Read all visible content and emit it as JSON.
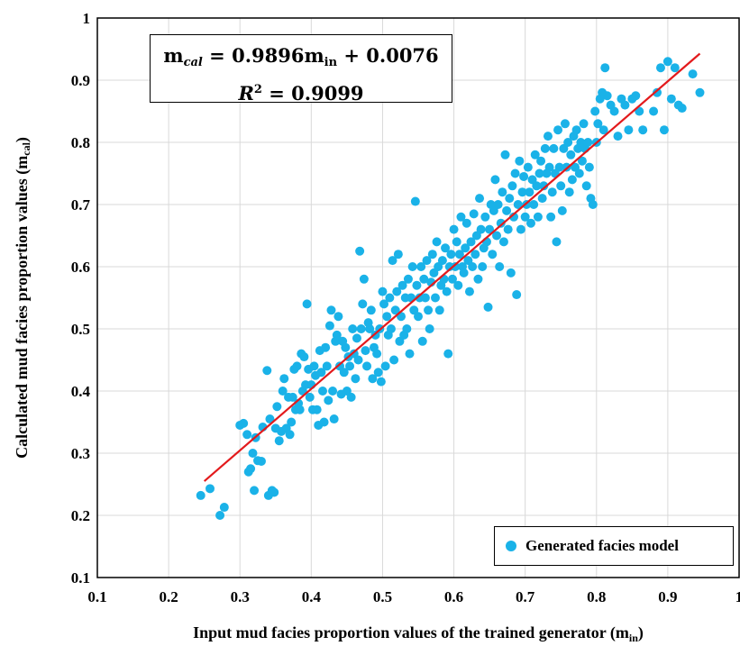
{
  "colors": {
    "points": "#1ab2e8",
    "fit_line": "#e31a1c",
    "axis": "#000000",
    "grid": "#d9d9d9"
  },
  "equation": {
    "line1_lhs_symbol": "m",
    "line1_lhs_sub": "cal",
    "line1_rhs": "= 0.9896m",
    "line1_rhs_sub": "in",
    "line1_tail": "+ 0.0076",
    "line2_symbol": "R",
    "line2_sup": "2",
    "line2_rhs": "= 0.9099"
  },
  "legend": {
    "label": "Generated facies model"
  },
  "chart_data": {
    "type": "scatter",
    "title": "",
    "xlabel": "Input mud facies proportion values of the trained generator (m",
    "xlabel_sub": "in",
    "xlabel_close": ")",
    "ylabel": "Calculated mud facies proportion values (m",
    "ylabel_sub": "cal",
    "ylabel_close": ")",
    "xlim": [
      0.1,
      1.0
    ],
    "ylim": [
      0.1,
      1.0
    ],
    "xticks": [
      "0.1",
      "0.2",
      "0.3",
      "0.4",
      "0.5",
      "0.6",
      "0.7",
      "0.8",
      "0.9",
      "1"
    ],
    "yticks": [
      "0.1",
      "0.2",
      "0.3",
      "0.4",
      "0.5",
      "0.6",
      "0.7",
      "0.8",
      "0.9",
      "1"
    ],
    "grid": true,
    "legend_position": "bottom-right",
    "fit_line": {
      "slope": 0.9896,
      "intercept": 0.0076,
      "x_range": [
        0.25,
        0.945
      ]
    },
    "series": [
      {
        "name": "Generated facies model",
        "points": [
          [
            0.245,
            0.232
          ],
          [
            0.258,
            0.243
          ],
          [
            0.272,
            0.2
          ],
          [
            0.278,
            0.213
          ],
          [
            0.3,
            0.345
          ],
          [
            0.305,
            0.348
          ],
          [
            0.31,
            0.33
          ],
          [
            0.312,
            0.27
          ],
          [
            0.315,
            0.275
          ],
          [
            0.318,
            0.3
          ],
          [
            0.32,
            0.24
          ],
          [
            0.322,
            0.325
          ],
          [
            0.325,
            0.288
          ],
          [
            0.33,
            0.287
          ],
          [
            0.332,
            0.342
          ],
          [
            0.338,
            0.433
          ],
          [
            0.34,
            0.232
          ],
          [
            0.342,
            0.355
          ],
          [
            0.345,
            0.24
          ],
          [
            0.348,
            0.237
          ],
          [
            0.35,
            0.34
          ],
          [
            0.352,
            0.375
          ],
          [
            0.355,
            0.32
          ],
          [
            0.358,
            0.335
          ],
          [
            0.36,
            0.4
          ],
          [
            0.362,
            0.42
          ],
          [
            0.365,
            0.34
          ],
          [
            0.368,
            0.39
          ],
          [
            0.37,
            0.33
          ],
          [
            0.372,
            0.35
          ],
          [
            0.374,
            0.39
          ],
          [
            0.376,
            0.435
          ],
          [
            0.378,
            0.37
          ],
          [
            0.38,
            0.44
          ],
          [
            0.382,
            0.38
          ],
          [
            0.384,
            0.37
          ],
          [
            0.386,
            0.46
          ],
          [
            0.388,
            0.4
          ],
          [
            0.39,
            0.455
          ],
          [
            0.392,
            0.41
          ],
          [
            0.394,
            0.54
          ],
          [
            0.396,
            0.435
          ],
          [
            0.398,
            0.39
          ],
          [
            0.4,
            0.41
          ],
          [
            0.402,
            0.37
          ],
          [
            0.404,
            0.44
          ],
          [
            0.406,
            0.425
          ],
          [
            0.408,
            0.37
          ],
          [
            0.41,
            0.345
          ],
          [
            0.412,
            0.465
          ],
          [
            0.414,
            0.43
          ],
          [
            0.416,
            0.4
          ],
          [
            0.418,
            0.35
          ],
          [
            0.42,
            0.47
          ],
          [
            0.422,
            0.44
          ],
          [
            0.424,
            0.385
          ],
          [
            0.426,
            0.505
          ],
          [
            0.428,
            0.53
          ],
          [
            0.43,
            0.4
          ],
          [
            0.432,
            0.355
          ],
          [
            0.434,
            0.48
          ],
          [
            0.436,
            0.49
          ],
          [
            0.438,
            0.52
          ],
          [
            0.44,
            0.44
          ],
          [
            0.442,
            0.395
          ],
          [
            0.444,
            0.48
          ],
          [
            0.446,
            0.43
          ],
          [
            0.448,
            0.47
          ],
          [
            0.45,
            0.4
          ],
          [
            0.452,
            0.455
          ],
          [
            0.454,
            0.44
          ],
          [
            0.456,
            0.39
          ],
          [
            0.458,
            0.5
          ],
          [
            0.46,
            0.46
          ],
          [
            0.462,
            0.42
          ],
          [
            0.464,
            0.485
          ],
          [
            0.466,
            0.45
          ],
          [
            0.468,
            0.625
          ],
          [
            0.47,
            0.5
          ],
          [
            0.472,
            0.54
          ],
          [
            0.474,
            0.58
          ],
          [
            0.476,
            0.465
          ],
          [
            0.478,
            0.44
          ],
          [
            0.48,
            0.51
          ],
          [
            0.482,
            0.5
          ],
          [
            0.484,
            0.53
          ],
          [
            0.486,
            0.42
          ],
          [
            0.488,
            0.47
          ],
          [
            0.49,
            0.49
          ],
          [
            0.492,
            0.46
          ],
          [
            0.494,
            0.43
          ],
          [
            0.496,
            0.5
          ],
          [
            0.498,
            0.415
          ],
          [
            0.5,
            0.56
          ],
          [
            0.502,
            0.54
          ],
          [
            0.504,
            0.44
          ],
          [
            0.506,
            0.52
          ],
          [
            0.508,
            0.49
          ],
          [
            0.51,
            0.55
          ],
          [
            0.512,
            0.5
          ],
          [
            0.514,
            0.61
          ],
          [
            0.516,
            0.45
          ],
          [
            0.518,
            0.53
          ],
          [
            0.52,
            0.56
          ],
          [
            0.522,
            0.62
          ],
          [
            0.524,
            0.48
          ],
          [
            0.526,
            0.52
          ],
          [
            0.528,
            0.57
          ],
          [
            0.53,
            0.49
          ],
          [
            0.532,
            0.55
          ],
          [
            0.534,
            0.5
          ],
          [
            0.536,
            0.58
          ],
          [
            0.538,
            0.46
          ],
          [
            0.54,
            0.55
          ],
          [
            0.542,
            0.6
          ],
          [
            0.544,
            0.53
          ],
          [
            0.546,
            0.705
          ],
          [
            0.548,
            0.57
          ],
          [
            0.55,
            0.52
          ],
          [
            0.552,
            0.55
          ],
          [
            0.554,
            0.6
          ],
          [
            0.556,
            0.48
          ],
          [
            0.558,
            0.58
          ],
          [
            0.56,
            0.55
          ],
          [
            0.562,
            0.61
          ],
          [
            0.564,
            0.53
          ],
          [
            0.566,
            0.5
          ],
          [
            0.568,
            0.575
          ],
          [
            0.57,
            0.62
          ],
          [
            0.572,
            0.59
          ],
          [
            0.574,
            0.55
          ],
          [
            0.576,
            0.64
          ],
          [
            0.578,
            0.6
          ],
          [
            0.58,
            0.53
          ],
          [
            0.582,
            0.57
          ],
          [
            0.584,
            0.61
          ],
          [
            0.586,
            0.58
          ],
          [
            0.588,
            0.63
          ],
          [
            0.59,
            0.56
          ],
          [
            0.592,
            0.46
          ],
          [
            0.594,
            0.6
          ],
          [
            0.596,
            0.62
          ],
          [
            0.598,
            0.58
          ],
          [
            0.6,
            0.66
          ],
          [
            0.602,
            0.6
          ],
          [
            0.604,
            0.64
          ],
          [
            0.606,
            0.57
          ],
          [
            0.608,
            0.62
          ],
          [
            0.61,
            0.68
          ],
          [
            0.612,
            0.6
          ],
          [
            0.614,
            0.59
          ],
          [
            0.616,
            0.63
          ],
          [
            0.618,
            0.67
          ],
          [
            0.62,
            0.61
          ],
          [
            0.622,
            0.56
          ],
          [
            0.624,
            0.64
          ],
          [
            0.626,
            0.6
          ],
          [
            0.628,
            0.685
          ],
          [
            0.63,
            0.62
          ],
          [
            0.632,
            0.65
          ],
          [
            0.634,
            0.58
          ],
          [
            0.636,
            0.71
          ],
          [
            0.638,
            0.66
          ],
          [
            0.64,
            0.6
          ],
          [
            0.642,
            0.63
          ],
          [
            0.644,
            0.68
          ],
          [
            0.646,
            0.64
          ],
          [
            0.648,
            0.535
          ],
          [
            0.65,
            0.66
          ],
          [
            0.652,
            0.7
          ],
          [
            0.654,
            0.62
          ],
          [
            0.656,
            0.69
          ],
          [
            0.658,
            0.74
          ],
          [
            0.66,
            0.65
          ],
          [
            0.662,
            0.7
          ],
          [
            0.664,
            0.6
          ],
          [
            0.666,
            0.67
          ],
          [
            0.668,
            0.72
          ],
          [
            0.67,
            0.64
          ],
          [
            0.672,
            0.78
          ],
          [
            0.674,
            0.69
          ],
          [
            0.676,
            0.66
          ],
          [
            0.678,
            0.71
          ],
          [
            0.68,
            0.59
          ],
          [
            0.682,
            0.73
          ],
          [
            0.684,
            0.68
          ],
          [
            0.686,
            0.75
          ],
          [
            0.688,
            0.555
          ],
          [
            0.69,
            0.7
          ],
          [
            0.692,
            0.77
          ],
          [
            0.694,
            0.66
          ],
          [
            0.696,
            0.72
          ],
          [
            0.698,
            0.745
          ],
          [
            0.7,
            0.68
          ],
          [
            0.702,
            0.7
          ],
          [
            0.704,
            0.76
          ],
          [
            0.706,
            0.72
          ],
          [
            0.708,
            0.67
          ],
          [
            0.71,
            0.74
          ],
          [
            0.712,
            0.7
          ],
          [
            0.714,
            0.78
          ],
          [
            0.716,
            0.73
          ],
          [
            0.718,
            0.68
          ],
          [
            0.72,
            0.75
          ],
          [
            0.722,
            0.77
          ],
          [
            0.724,
            0.71
          ],
          [
            0.726,
            0.73
          ],
          [
            0.728,
            0.79
          ],
          [
            0.73,
            0.75
          ],
          [
            0.732,
            0.81
          ],
          [
            0.734,
            0.76
          ],
          [
            0.736,
            0.68
          ],
          [
            0.738,
            0.72
          ],
          [
            0.74,
            0.79
          ],
          [
            0.742,
            0.75
          ],
          [
            0.744,
            0.64
          ],
          [
            0.746,
            0.82
          ],
          [
            0.748,
            0.76
          ],
          [
            0.75,
            0.73
          ],
          [
            0.752,
            0.69
          ],
          [
            0.754,
            0.79
          ],
          [
            0.756,
            0.83
          ],
          [
            0.758,
            0.76
          ],
          [
            0.76,
            0.8
          ],
          [
            0.762,
            0.72
          ],
          [
            0.764,
            0.78
          ],
          [
            0.766,
            0.74
          ],
          [
            0.768,
            0.81
          ],
          [
            0.77,
            0.76
          ],
          [
            0.772,
            0.82
          ],
          [
            0.774,
            0.79
          ],
          [
            0.776,
            0.75
          ],
          [
            0.778,
            0.8
          ],
          [
            0.78,
            0.77
          ],
          [
            0.782,
            0.83
          ],
          [
            0.784,
            0.79
          ],
          [
            0.786,
            0.73
          ],
          [
            0.788,
            0.8
          ],
          [
            0.79,
            0.76
          ],
          [
            0.792,
            0.71
          ],
          [
            0.795,
            0.7
          ],
          [
            0.798,
            0.85
          ],
          [
            0.8,
            0.8
          ],
          [
            0.802,
            0.83
          ],
          [
            0.805,
            0.87
          ],
          [
            0.808,
            0.88
          ],
          [
            0.81,
            0.82
          ],
          [
            0.812,
            0.92
          ],
          [
            0.815,
            0.875
          ],
          [
            0.82,
            0.86
          ],
          [
            0.825,
            0.85
          ],
          [
            0.83,
            0.81
          ],
          [
            0.835,
            0.87
          ],
          [
            0.84,
            0.86
          ],
          [
            0.845,
            0.82
          ],
          [
            0.85,
            0.87
          ],
          [
            0.855,
            0.875
          ],
          [
            0.86,
            0.85
          ],
          [
            0.865,
            0.82
          ],
          [
            0.88,
            0.85
          ],
          [
            0.885,
            0.88
          ],
          [
            0.89,
            0.92
          ],
          [
            0.895,
            0.82
          ],
          [
            0.9,
            0.93
          ],
          [
            0.905,
            0.87
          ],
          [
            0.91,
            0.92
          ],
          [
            0.915,
            0.86
          ],
          [
            0.92,
            0.855
          ],
          [
            0.935,
            0.91
          ],
          [
            0.945,
            0.88
          ]
        ]
      }
    ]
  }
}
